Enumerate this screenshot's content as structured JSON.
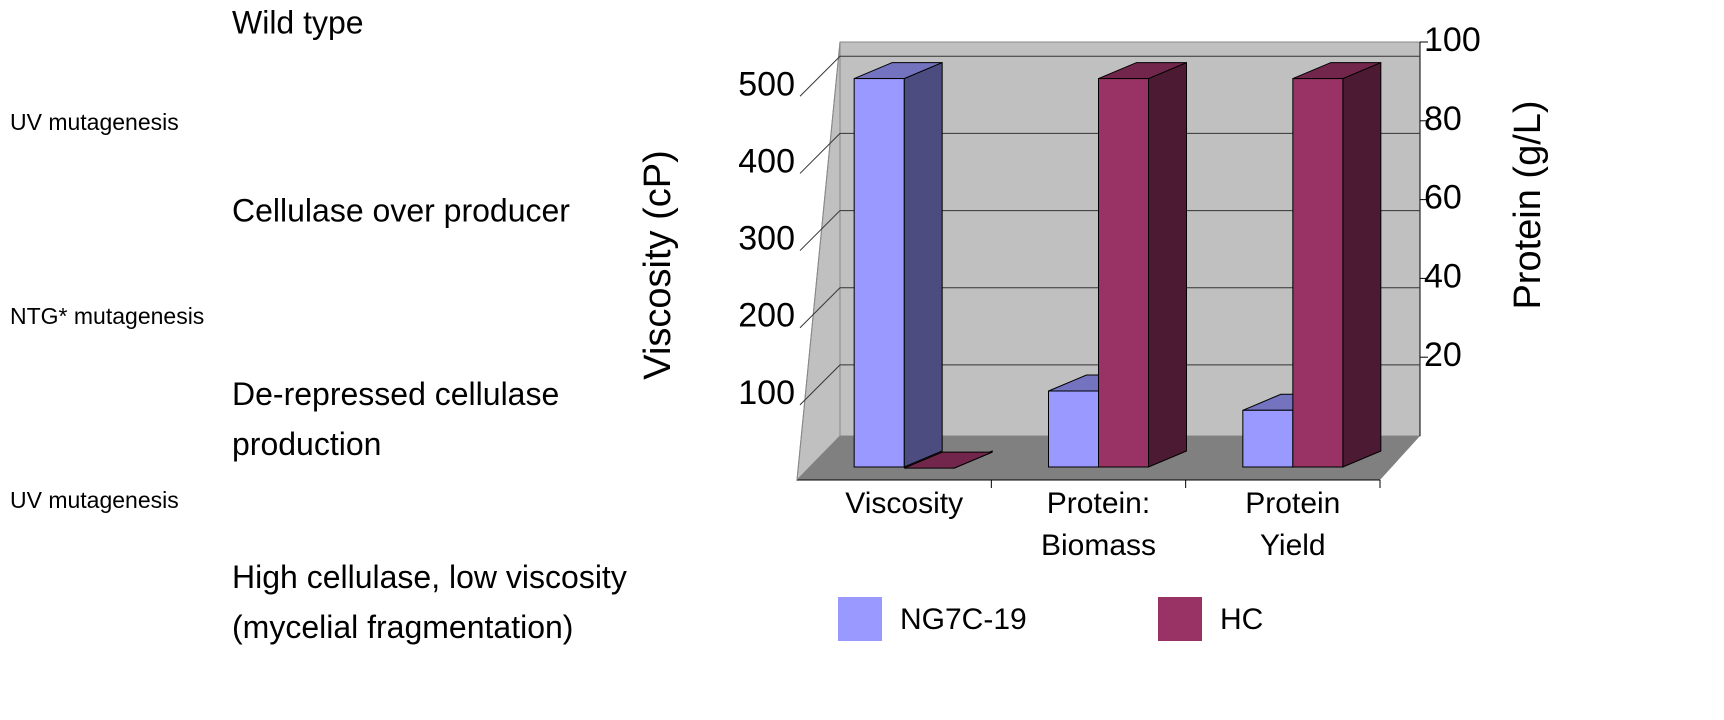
{
  "steps": [
    "Wild type",
    "Cellulase over producer",
    "De-repressed cellulase\nproduction",
    "High cellulase,  low viscosity\n(mycelial fragmentation)"
  ],
  "treatments": [
    "UV mutagenesis",
    "NTG* mutagenesis",
    "UV mutagenesis"
  ],
  "chart_data": {
    "type": "bar",
    "ylabel": "Viscosity (cP)",
    "y2label": "Protein (g/L)",
    "categories": [
      "Viscosity",
      "Protein:\nBiomass",
      "Protein\nYield"
    ],
    "series": [
      {
        "name": "NG7C-19",
        "color": "#9999ff",
        "values": [
          510,
          105,
          80
        ]
      },
      {
        "name": "HC",
        "color": "#993366",
        "values": [
          5,
          510,
          510
        ]
      }
    ],
    "ylim": [
      0,
      560
    ],
    "yticks": [
      100,
      200,
      300,
      400,
      500
    ],
    "y2lim": [
      0,
      100
    ],
    "y2ticks": [
      20,
      40,
      60,
      80,
      100
    ],
    "grid": true,
    "legend": "bottom"
  }
}
